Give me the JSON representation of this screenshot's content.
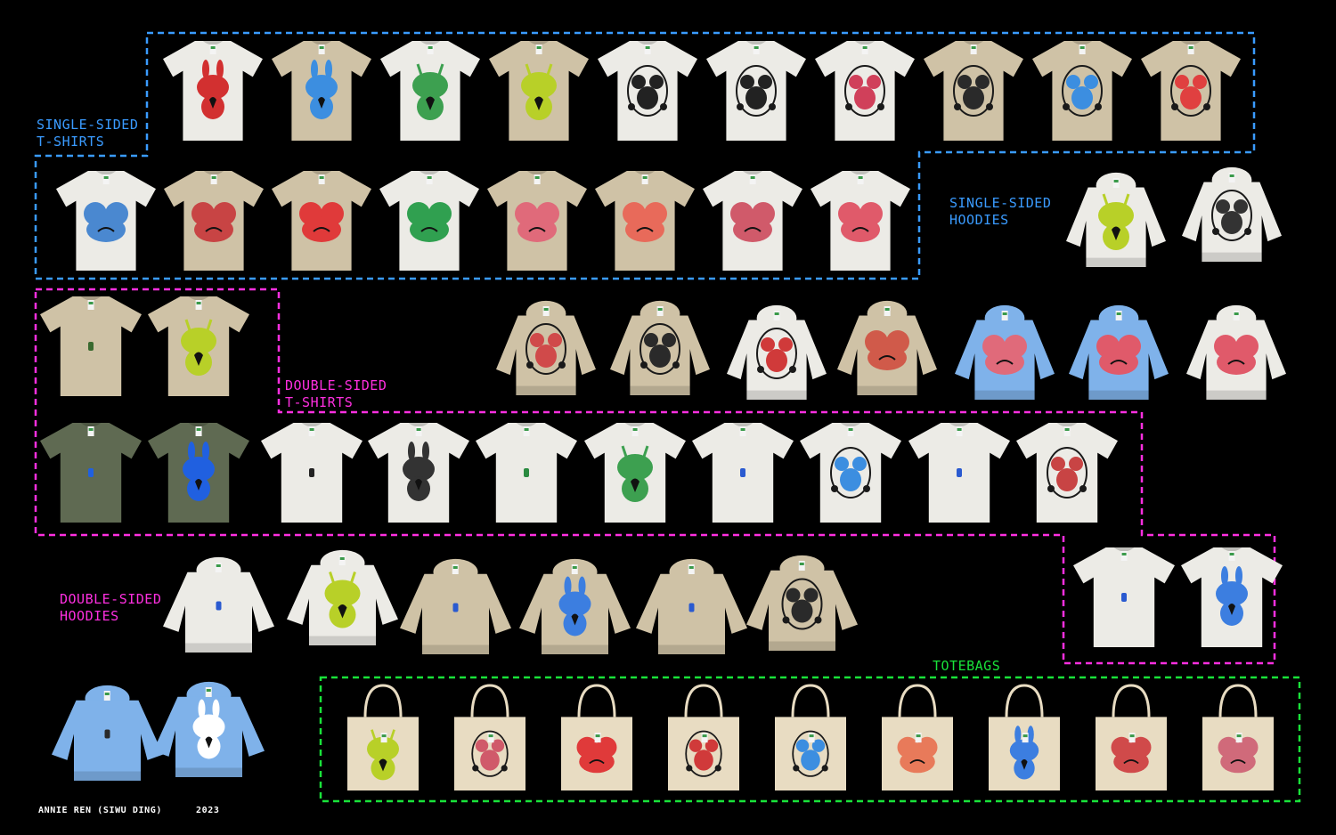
{
  "sections": {
    "single_tshirts": "SINGLE-SIDED\nT-SHIRTS",
    "single_hoodies": "SINGLE-SIDED\nHOODIES",
    "double_tshirts": "DOUBLE-SIDED\nT-SHIRTS",
    "double_hoodies": "DOUBLE-SIDED\nHOODIES",
    "totebags": "TOTEBAGS"
  },
  "footer": {
    "author": "ANNIE REN (SIWU DING)",
    "year": "2023"
  },
  "colors": {
    "single_outline": "#3a9bff",
    "double_outline": "#ff2fe0",
    "tote_outline": "#19e33a",
    "background": "#000000"
  },
  "items": {
    "single_tshirts_row1": [
      {
        "fabric": "white",
        "print": "#d23030",
        "icon": "bunny-print-icon"
      },
      {
        "fabric": "sand",
        "print": "#3c8ee0",
        "icon": "bunny-print-icon"
      },
      {
        "fabric": "white",
        "print": "#3da050",
        "icon": "alien-print-icon"
      },
      {
        "fabric": "sand",
        "print": "#b8d028",
        "icon": "alien-print-icon"
      },
      {
        "fabric": "white",
        "print": "#222222",
        "icon": "symmetric-print-icon"
      },
      {
        "fabric": "white",
        "print": "#222222",
        "icon": "symmetric-print-icon"
      },
      {
        "fabric": "white",
        "print": "#d0405a",
        "icon": "symmetric-print-icon"
      },
      {
        "fabric": "sand",
        "print": "#2a2a2a",
        "icon": "symmetric-print-icon"
      },
      {
        "fabric": "sand",
        "print": "#3c8ee0",
        "icon": "symmetric-print-icon"
      },
      {
        "fabric": "sand",
        "print": "#e04040",
        "icon": "symmetric-print-icon"
      }
    ],
    "single_tshirts_row2": [
      {
        "fabric": "white",
        "print": "#4a88d0",
        "icon": "face-print-icon"
      },
      {
        "fabric": "sand",
        "print": "#c84444",
        "icon": "face-print-icon"
      },
      {
        "fabric": "sand",
        "print": "#e03a3a",
        "icon": "face-print-icon"
      },
      {
        "fabric": "white",
        "print": "#30a050",
        "icon": "face-print-icon"
      },
      {
        "fabric": "sand",
        "print": "#e06a7a",
        "icon": "face-print-icon"
      },
      {
        "fabric": "sand",
        "print": "#e86a5a",
        "icon": "face-print-icon"
      },
      {
        "fabric": "white",
        "print": "#d05a6a",
        "icon": "face-print-icon"
      },
      {
        "fabric": "white",
        "print": "#e05a6a",
        "icon": "face-print-icon"
      }
    ],
    "single_hoodies": [
      {
        "fabric": "white",
        "print": "#b8d028",
        "icon": "alien-print-icon"
      },
      {
        "fabric": "white",
        "print": "#333333",
        "icon": "symmetric-print-icon"
      },
      {
        "fabric": "sand",
        "print": "#d04a4a",
        "icon": "symmetric-print-icon"
      },
      {
        "fabric": "sand",
        "print": "#2a2a2a",
        "icon": "symmetric-print-icon"
      },
      {
        "fabric": "white",
        "print": "#d03a3a",
        "icon": "symmetric-print-icon"
      },
      {
        "fabric": "sand",
        "print": "#d05a4a",
        "icon": "face-print-icon"
      },
      {
        "fabric": "blue",
        "print": "#e06a7a",
        "icon": "face-print-icon"
      },
      {
        "fabric": "blue",
        "print": "#e05a6a",
        "icon": "face-print-icon"
      },
      {
        "fabric": "white",
        "print": "#e05a6a",
        "icon": "face-print-icon"
      }
    ],
    "double_tshirts": [
      {
        "fabric": "sand",
        "print": "#3a6a30",
        "icon": "small-logo-icon"
      },
      {
        "fabric": "sand",
        "print": "#b8d028",
        "icon": "alien-print-icon"
      },
      {
        "fabric": "olive",
        "print": "#2060e0",
        "icon": "small-logo-icon"
      },
      {
        "fabric": "olive",
        "print": "#2060e0",
        "icon": "bunny-print-icon"
      },
      {
        "fabric": "white",
        "print": "#222222",
        "icon": "small-logo-icon"
      },
      {
        "fabric": "white",
        "print": "#333333",
        "icon": "bunny-print-icon"
      },
      {
        "fabric": "white",
        "print": "#2a8a40",
        "icon": "small-logo-icon"
      },
      {
        "fabric": "white",
        "print": "#3da050",
        "icon": "alien-print-icon"
      },
      {
        "fabric": "white",
        "print": "#2a5ad0",
        "icon": "small-logo-icon"
      },
      {
        "fabric": "white",
        "print": "#3c8ee0",
        "icon": "symmetric-print-icon"
      },
      {
        "fabric": "white",
        "print": "#2a5ad0",
        "icon": "small-logo-icon"
      },
      {
        "fabric": "white",
        "print": "#c84444",
        "icon": "symmetric-print-icon"
      },
      {
        "fabric": "white",
        "print": "#2a5ad0",
        "icon": "small-logo-icon"
      },
      {
        "fabric": "white",
        "print": "#3c7ee0",
        "icon": "bunny-print-icon"
      }
    ],
    "double_hoodies": [
      {
        "fabric": "white",
        "print": "#2a5ad0",
        "icon": "small-logo-icon"
      },
      {
        "fabric": "white",
        "print": "#b8d028",
        "icon": "alien-print-icon"
      },
      {
        "fabric": "sand",
        "print": "#2a5ad0",
        "icon": "small-logo-icon"
      },
      {
        "fabric": "sand",
        "print": "#3c7ee0",
        "icon": "bunny-print-icon"
      },
      {
        "fabric": "sand",
        "print": "#2a5ad0",
        "icon": "small-logo-icon"
      },
      {
        "fabric": "sand",
        "print": "#2a2a2a",
        "icon": "symmetric-print-icon"
      },
      {
        "fabric": "blue",
        "print": "#2a2a2a",
        "icon": "small-logo-icon"
      },
      {
        "fabric": "blue",
        "print": "#ffffff",
        "icon": "bunny-print-icon"
      }
    ],
    "totebags": [
      {
        "fabric": "canvas",
        "print": "#b8d028",
        "icon": "alien-print-icon"
      },
      {
        "fabric": "canvas",
        "print": "#d05a6a",
        "icon": "symmetric-print-icon"
      },
      {
        "fabric": "canvas",
        "print": "#e03a3a",
        "icon": "face-print-icon"
      },
      {
        "fabric": "canvas",
        "print": "#d03a3a",
        "icon": "symmetric-print-icon"
      },
      {
        "fabric": "canvas",
        "print": "#3c8ee0",
        "icon": "symmetric-print-icon"
      },
      {
        "fabric": "canvas",
        "print": "#e87a5a",
        "icon": "face-print-icon"
      },
      {
        "fabric": "canvas",
        "print": "#3c7ee0",
        "icon": "bunny-print-icon"
      },
      {
        "fabric": "canvas",
        "print": "#d04a4a",
        "icon": "face-print-icon"
      },
      {
        "fabric": "canvas",
        "print": "#d06a7a",
        "icon": "face-print-icon"
      }
    ]
  }
}
